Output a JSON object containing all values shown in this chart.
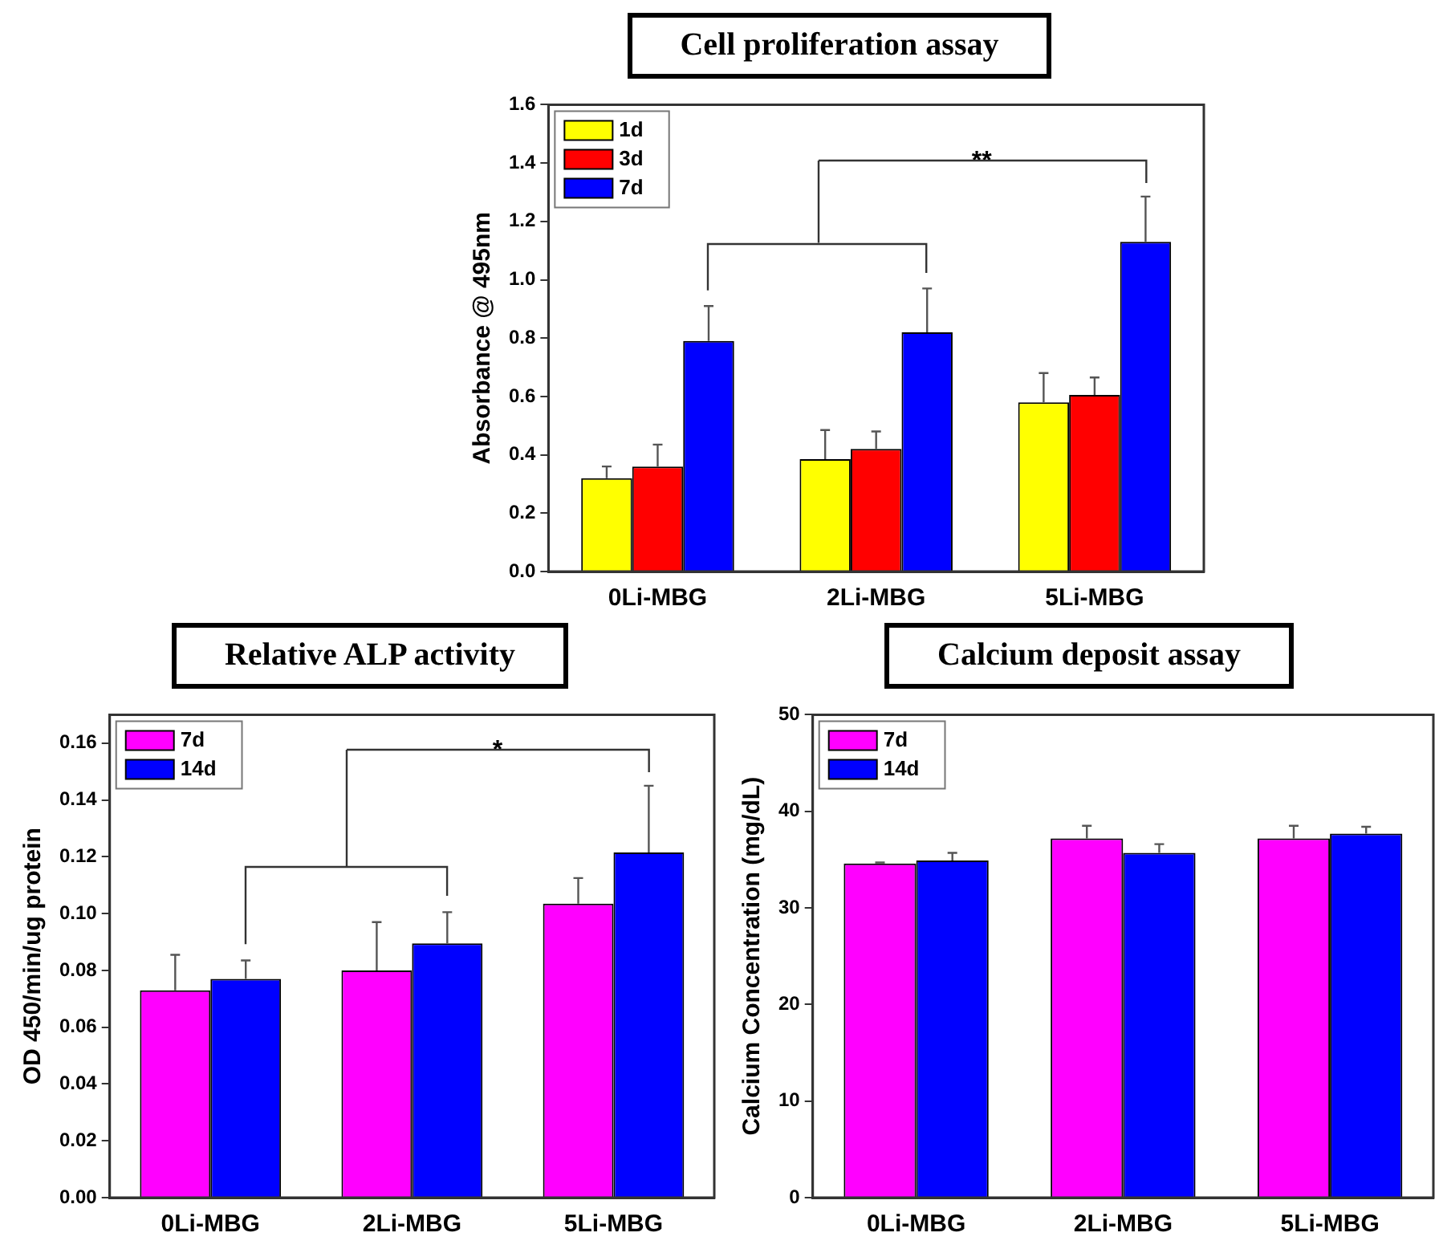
{
  "chart_data": [
    {
      "type": "bar",
      "title": "Cell proliferation assay",
      "ylabel": "Absorbance @ 495nm",
      "categories": [
        "0Li-MBG",
        "2Li-MBG",
        "5Li-MBG"
      ],
      "series": [
        {
          "name": "1d",
          "color": "#ffff00",
          "values": [
            0.32,
            0.385,
            0.58
          ],
          "errors": [
            [
              0.32,
              0.36
            ],
            [
              0.385,
              0.485
            ],
            [
              0.58,
              0.68
            ]
          ]
        },
        {
          "name": "3d",
          "color": "#ff0000",
          "values": [
            0.36,
            0.42,
            0.605
          ],
          "errors": [
            [
              0.36,
              0.435
            ],
            [
              0.42,
              0.48
            ],
            [
              0.605,
              0.665
            ]
          ]
        },
        {
          "name": "7d",
          "color": "#0000ff",
          "values": [
            0.79,
            0.82,
            1.13
          ],
          "errors": [
            [
              0.79,
              0.91
            ],
            [
              0.82,
              0.97
            ],
            [
              1.13,
              1.285
            ]
          ]
        }
      ],
      "ylim": [
        0,
        1.6
      ],
      "yticks": [
        {
          "value": 0,
          "label": "0.0"
        },
        0.2,
        0.4,
        0.6,
        0.8,
        {
          "value": 1,
          "label": "1.0"
        },
        1.2,
        1.4,
        1.6
      ],
      "grid": false,
      "legend": "top left",
      "annotations": [
        "**"
      ]
    },
    {
      "type": "bar",
      "title": "Relative ALP activity",
      "ylabel": "OD 450/min/ug protein",
      "categories": [
        "0Li-MBG",
        "2Li-MBG",
        "5Li-MBG"
      ],
      "series": [
        {
          "name": "7d",
          "color": "#ff00ff",
          "values": [
            0.073,
            0.08,
            0.1035
          ],
          "errors": [
            [
              0.073,
              0.0855
            ],
            [
              0.08,
              0.097
            ],
            [
              0.1035,
              0.1125
            ]
          ]
        },
        {
          "name": "14d",
          "color": "#0000ff",
          "values": [
            0.077,
            0.0895,
            0.1215
          ],
          "errors": [
            [
              0.077,
              0.0835
            ],
            [
              0.0895,
              0.1005
            ],
            [
              0.1215,
              0.145
            ]
          ]
        }
      ],
      "ylim": [
        0,
        0.17
      ],
      "yticks": [
        {
          "value": 0,
          "label": "0.00"
        },
        0.02,
        0.04,
        0.06,
        0.08,
        {
          "value": 0.1,
          "label": "0.10"
        },
        0.12,
        0.14,
        0.16
      ],
      "grid": false,
      "legend": "top left",
      "annotations": [
        "*"
      ]
    },
    {
      "type": "bar",
      "title": "Calcium deposit assay",
      "ylabel": "Calcium Concentration (mg/dL)",
      "categories": [
        "0Li-MBG",
        "2Li-MBG",
        "5Li-MBG"
      ],
      "series": [
        {
          "name": "7d",
          "color": "#ff00ff",
          "values": [
            34.6,
            37.2,
            37.2
          ],
          "errors": [
            [
              34.6,
              34.7
            ],
            [
              37.2,
              38.5
            ],
            [
              37.2,
              38.5
            ]
          ]
        },
        {
          "name": "14d",
          "color": "#0000ff",
          "values": [
            34.9,
            35.7,
            37.7
          ],
          "errors": [
            [
              34.9,
              35.7
            ],
            [
              35.7,
              36.6
            ],
            [
              37.7,
              38.4
            ]
          ]
        }
      ],
      "ylim": [
        0,
        50
      ],
      "yticks": [
        0,
        10,
        20,
        30,
        40,
        50
      ],
      "grid": false,
      "legend": "top left"
    }
  ]
}
